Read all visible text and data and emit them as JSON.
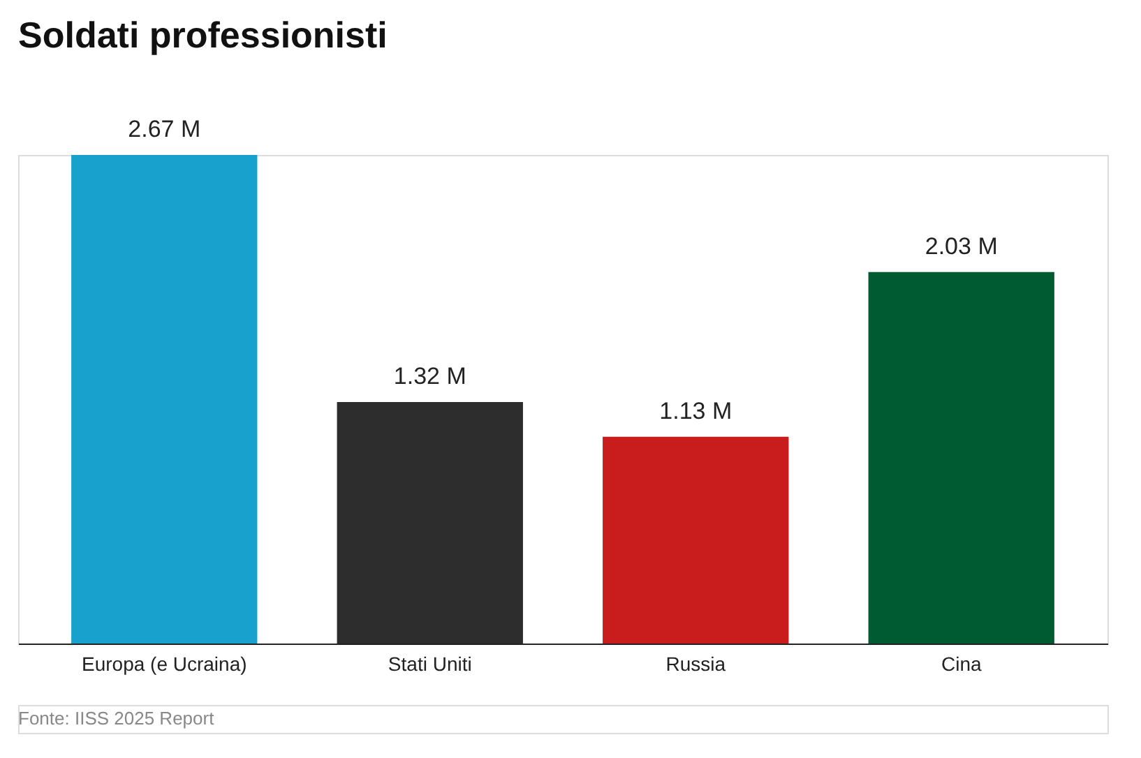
{
  "chart_data": {
    "type": "bar",
    "title": "Soldati professionisti",
    "categories": [
      "Europa (e Ucraina)",
      "Stati Uniti",
      "Russia",
      "Cina"
    ],
    "values": [
      2.67,
      1.32,
      1.13,
      2.03
    ],
    "colors": [
      "#18a1cd",
      "#2d2d2d",
      "#c91d1d",
      "#005b33"
    ],
    "value_labels": [
      "2.67 M",
      "1.32 M",
      "1.13 M",
      "2.03 M"
    ],
    "annotations": [
      "Fonte: IISS 2025 Report"
    ]
  }
}
